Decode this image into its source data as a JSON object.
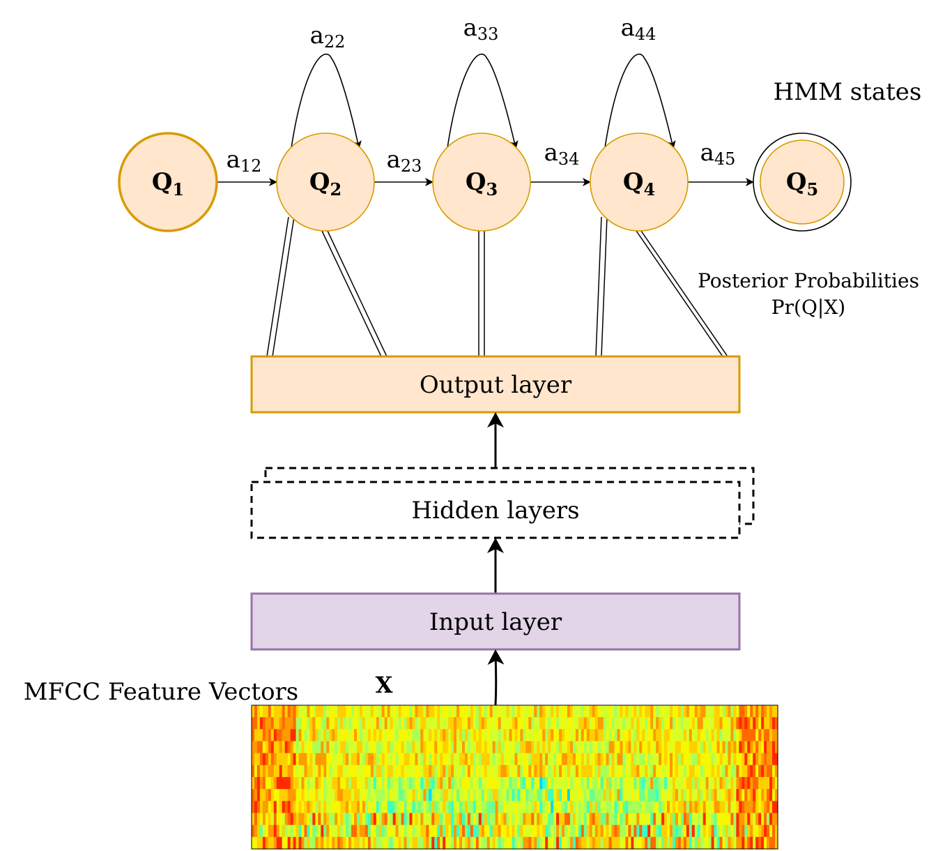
{
  "states": [
    {
      "letter": "Q",
      "sub": "1"
    },
    {
      "letter": "Q",
      "sub": "2"
    },
    {
      "letter": "Q",
      "sub": "3"
    },
    {
      "letter": "Q",
      "sub": "4"
    },
    {
      "letter": "Q",
      "sub": "5"
    }
  ],
  "transitions": [
    {
      "base": "a",
      "sub": "12"
    },
    {
      "base": "a",
      "sub": "23"
    },
    {
      "base": "a",
      "sub": "34"
    },
    {
      "base": "a",
      "sub": "45"
    }
  ],
  "self_loops": [
    {
      "base": "a",
      "sub": "22"
    },
    {
      "base": "a",
      "sub": "33"
    },
    {
      "base": "a",
      "sub": "44"
    }
  ],
  "labels": {
    "hmm_states": "HMM states",
    "posterior_line1": "Posterior Probabilities",
    "posterior_line2": "Pr(Q|X)",
    "output_layer": "Output layer",
    "hidden_layers": "Hidden layers",
    "input_layer": "Input layer",
    "mfcc": "MFCC Feature Vectors",
    "x_symbol": "X"
  },
  "colors": {
    "state_fill": "#ffe6cc",
    "state_stroke": "#d79b00",
    "input_fill": "#e1d5e7",
    "input_stroke": "#9673a6",
    "line": "#000000"
  }
}
